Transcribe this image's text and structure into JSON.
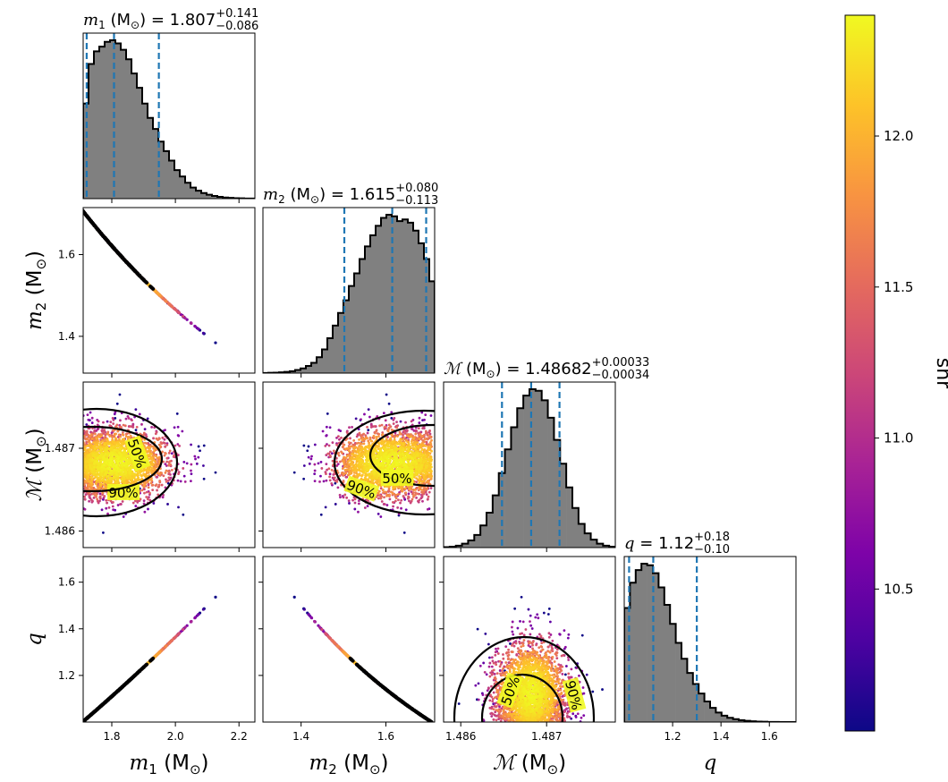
{
  "chart_data": {
    "type": "corner",
    "parameters": [
      {
        "key": "m1",
        "label": "m",
        "label_sub": "1",
        "unit": "(M",
        "unit_sub": "⊙",
        "unit_close": ")",
        "title_eq": "= 1.807",
        "title_plus": "+0.141",
        "title_minus": "−0.086",
        "range": [
          1.71,
          2.25
        ],
        "ticks": [
          1.8,
          2.0,
          2.2
        ],
        "tick_labels": [
          "1.8",
          "2.0",
          "2.2"
        ],
        "quantiles": [
          1.721,
          1.807,
          1.948
        ],
        "hist": [
          0.6,
          0.85,
          0.93,
          0.96,
          0.99,
          1.0,
          0.98,
          0.94,
          0.88,
          0.79,
          0.7,
          0.6,
          0.51,
          0.44,
          0.36,
          0.3,
          0.24,
          0.18,
          0.14,
          0.1,
          0.07,
          0.05,
          0.035,
          0.025,
          0.017,
          0.011,
          0.007,
          0.005,
          0.003,
          0.002,
          0.001,
          0.001
        ]
      },
      {
        "key": "m2",
        "label": "m",
        "label_sub": "2",
        "unit": "(M",
        "unit_sub": "⊙",
        "unit_close": ")",
        "title_eq": "= 1.615",
        "title_plus": "+0.080",
        "title_minus": "−0.113",
        "range": [
          1.31,
          1.715
        ],
        "ticks": [
          1.4,
          1.6
        ],
        "tick_labels": [
          "1.4",
          "1.6"
        ],
        "quantiles": [
          1.502,
          1.615,
          1.695
        ],
        "hist": [
          0.001,
          0.002,
          0.003,
          0.005,
          0.008,
          0.012,
          0.02,
          0.03,
          0.045,
          0.065,
          0.1,
          0.15,
          0.22,
          0.3,
          0.38,
          0.46,
          0.55,
          0.63,
          0.72,
          0.8,
          0.87,
          0.93,
          0.98,
          1.0,
          0.99,
          0.96,
          0.97,
          0.95,
          0.9,
          0.82,
          0.72,
          0.58
        ]
      },
      {
        "key": "mc",
        "label": "ℳ",
        "label_sub": "",
        "unit": "(M",
        "unit_sub": "⊙",
        "unit_close": ")",
        "title_eq": "= 1.48682",
        "title_plus": "+0.00033",
        "title_minus": "−0.00034",
        "range": [
          1.4858,
          1.4878
        ],
        "ticks": [
          1.486,
          1.487
        ],
        "tick_labels": [
          "1.486",
          "1.487"
        ],
        "quantiles": [
          1.48648,
          1.48682,
          1.48715
        ],
        "hist": [
          0.003,
          0.006,
          0.012,
          0.025,
          0.045,
          0.08,
          0.14,
          0.22,
          0.33,
          0.47,
          0.62,
          0.76,
          0.88,
          0.96,
          1.0,
          0.99,
          0.93,
          0.82,
          0.68,
          0.53,
          0.38,
          0.25,
          0.15,
          0.09,
          0.05,
          0.025,
          0.012,
          0.006
        ]
      },
      {
        "key": "q",
        "label": "q",
        "label_sub": "",
        "unit": "",
        "unit_sub": "",
        "unit_close": "",
        "title_eq": "= 1.12",
        "title_plus": "+0.18",
        "title_minus": "−0.10",
        "range": [
          1.0,
          1.71
        ],
        "ticks": [
          1.2,
          1.4,
          1.6
        ],
        "tick_labels": [
          "1.2",
          "1.4",
          "1.6"
        ],
        "quantiles": [
          1.02,
          1.12,
          1.3
        ],
        "hist": [
          0.72,
          0.88,
          0.96,
          1.0,
          0.99,
          0.94,
          0.85,
          0.74,
          0.62,
          0.5,
          0.4,
          0.31,
          0.24,
          0.18,
          0.13,
          0.09,
          0.06,
          0.04,
          0.027,
          0.018,
          0.012,
          0.008,
          0.005,
          0.003,
          0.002,
          0.001,
          0.001,
          0.0,
          0.0,
          0.0
        ]
      }
    ],
    "y_ticks": {
      "m2": {
        "ticks": [
          1.4,
          1.6
        ],
        "tick_labels": [
          "1.4",
          "1.6"
        ]
      },
      "mc": {
        "ticks": [
          1.486,
          1.487
        ],
        "tick_labels": [
          "1.486",
          "1.487"
        ]
      },
      "q": {
        "ticks": [
          1.2,
          1.4,
          1.6
        ],
        "tick_labels": [
          "1.2",
          "1.4",
          "1.6"
        ]
      }
    },
    "contour_labels": [
      "50%",
      "90%"
    ],
    "colorbar": {
      "label": "snr",
      "range": [
        10.03,
        12.4
      ],
      "ticks": [
        10.5,
        11.0,
        11.5,
        12.0
      ],
      "tick_labels": [
        "10.5",
        "11.0",
        "11.5",
        "12.0"
      ],
      "colormap": "plasma"
    },
    "colors": {
      "hist_fill": "#808080",
      "hist_edge": "#000000",
      "quantile_line": "#1f77b4",
      "contour": "#000000"
    }
  }
}
